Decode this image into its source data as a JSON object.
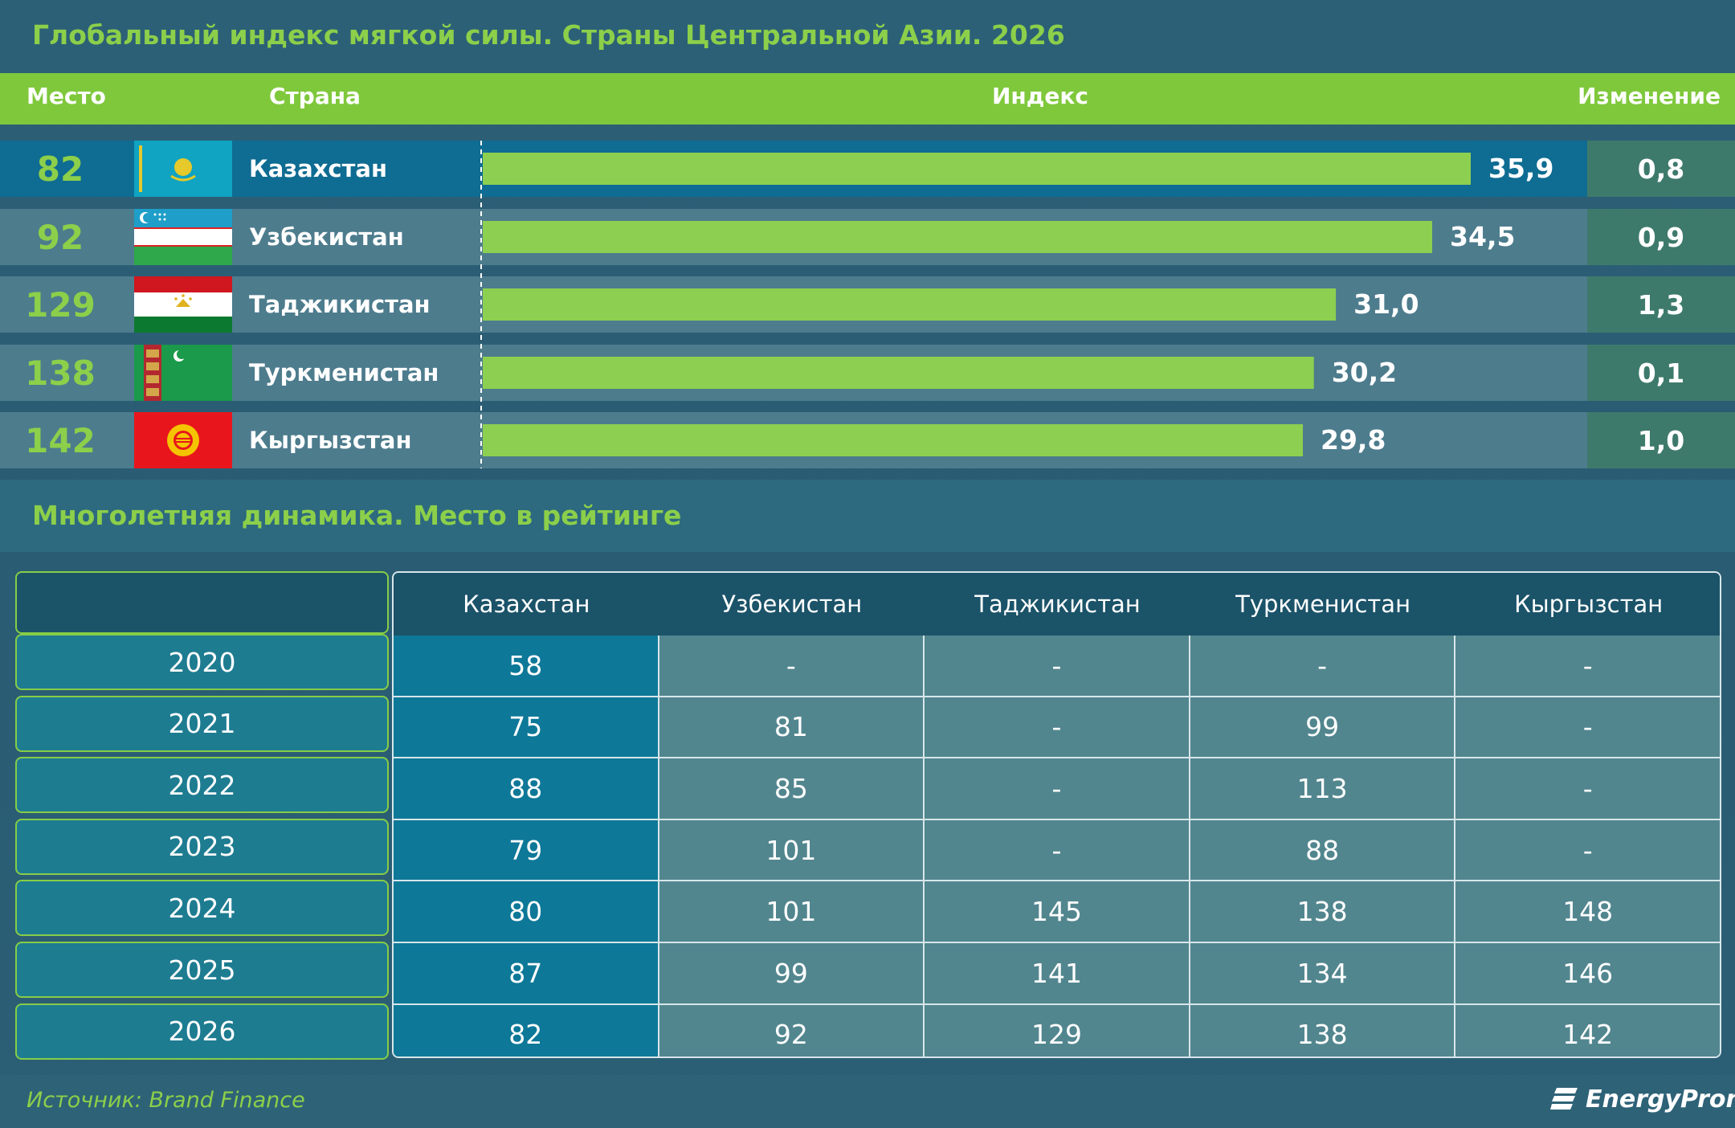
{
  "title": "Глобальный индекс мягкой силы. Страны Центральной Азии. 2026",
  "header": {
    "rank": "Место",
    "country": "Страна",
    "index": "Индекс",
    "change": "Изменение"
  },
  "colors": {
    "accent_green": "#7fc83c",
    "bar_green": "#8dcf50",
    "row_highlight": "#0f6c92",
    "row_normal": "#4d7c8d"
  },
  "chart_data": {
    "type": "bar",
    "orientation": "horizontal",
    "categories": [
      "Казахстан",
      "Узбекистан",
      "Таджикистан",
      "Туркменистан",
      "Кыргызстан"
    ],
    "values": [
      35.9,
      34.5,
      31.0,
      30.2,
      29.8
    ],
    "value_labels": [
      "35,9",
      "34,5",
      "31,0",
      "30,2",
      "29,8"
    ],
    "ranks": [
      "82",
      "92",
      "129",
      "138",
      "142"
    ],
    "changes": [
      "0,8",
      "0,9",
      "1,3",
      "0,1",
      "1,0"
    ],
    "flags": [
      "kazakhstan-flag-icon",
      "uzbekistan-flag-icon",
      "tajikistan-flag-icon",
      "turkmenistan-flag-icon",
      "kyrgyzstan-flag-icon"
    ],
    "xlim": [
      0,
      38
    ],
    "grid": false
  },
  "subtitle": "Многолетняя динамика. Место в рейтинге",
  "table": {
    "columns": [
      "Казахстан",
      "Узбекистан",
      "Таджикистан",
      "Туркменистан",
      "Кыргызстан"
    ],
    "rows": [
      {
        "year": "2020",
        "values": [
          "58",
          "-",
          "-",
          "-",
          "-"
        ]
      },
      {
        "year": "2021",
        "values": [
          "75",
          "81",
          "-",
          "99",
          "-"
        ]
      },
      {
        "year": "2022",
        "values": [
          "88",
          "85",
          "-",
          "113",
          "-"
        ]
      },
      {
        "year": "2023",
        "values": [
          "79",
          "101",
          "-",
          "88",
          "-"
        ]
      },
      {
        "year": "2024",
        "values": [
          "80",
          "101",
          "145",
          "138",
          "148"
        ]
      },
      {
        "year": "2025",
        "values": [
          "87",
          "99",
          "141",
          "134",
          "146"
        ]
      },
      {
        "year": "2026",
        "values": [
          "82",
          "92",
          "129",
          "138",
          "142"
        ]
      }
    ]
  },
  "source": "Источник: Brand Finance",
  "logo": "EnergyProm"
}
